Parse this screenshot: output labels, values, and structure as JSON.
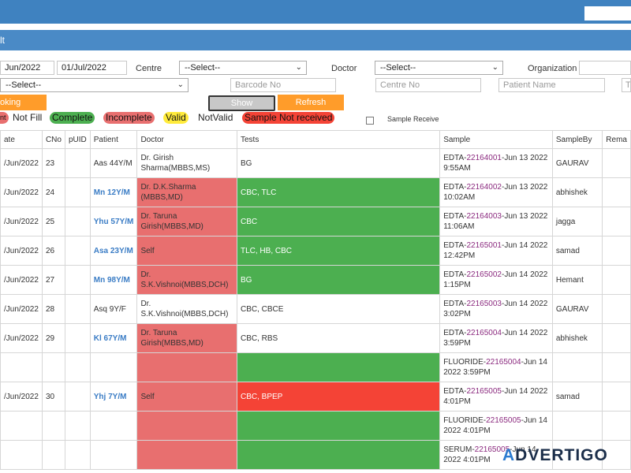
{
  "header": {
    "title": "lt"
  },
  "filters": {
    "from_date": "Jun/2022",
    "to_date": "01/Jul/2022",
    "centre_label": "Centre",
    "centre_value": "--Select--",
    "doctor_label": "Doctor",
    "doctor_value": "--Select--",
    "organization_label": "Organization",
    "second_select_value": "--Select--",
    "barcode_placeholder": "Barcode No",
    "centre_no_placeholder": "Centre No",
    "patient_name_placeholder": "Patient Name",
    "last_placeholder": "T"
  },
  "buttons": {
    "booking": "oking",
    "show": "Show",
    "refresh": "Refresh"
  },
  "legend": {
    "first": "nt",
    "not_fill": "Not Fill",
    "complete": "Complete",
    "incomplete": "Incomplete",
    "valid": "Valid",
    "not_valid": "NotValid",
    "not_received": "Sample Not received",
    "sample_receive": "Sample Receive"
  },
  "table": {
    "columns": [
      "ate",
      "CNo",
      "pUID",
      "Patient",
      "Doctor",
      "Tests",
      "Sample",
      "SampleBy",
      "Rema"
    ],
    "rows": [
      {
        "date": "/Jun/2022",
        "cno": "23",
        "puid": "",
        "patient": "Aas 44Y/M",
        "patient_link": false,
        "doctor": "Dr. Girish Sharma(MBBS,MS)",
        "doctor_style": "",
        "tests": "BG",
        "tests_style": "",
        "sample_pre": "EDTA-",
        "sample_id": "22164001",
        "sample_post": "-Jun 13 2022 9:55AM",
        "sampleby": "GAURAV"
      },
      {
        "date": "/Jun/2022",
        "cno": "24",
        "puid": "",
        "patient": "Mn 12Y/M",
        "patient_link": true,
        "doctor": "Dr. D.K.Sharma (MBBS,MD)",
        "doctor_style": "red",
        "tests": "CBC, TLC",
        "tests_style": "green",
        "sample_pre": "EDTA-",
        "sample_id": "22164002",
        "sample_post": "-Jun 13 2022 10:02AM",
        "sampleby": "abhishek"
      },
      {
        "date": "/Jun/2022",
        "cno": "25",
        "puid": "",
        "patient": "Yhu 57Y/M",
        "patient_link": true,
        "doctor": "Dr. Taruna Girish(MBBS,MD)",
        "doctor_style": "red",
        "tests": "CBC",
        "tests_style": "green",
        "sample_pre": "EDTA-",
        "sample_id": "22164003",
        "sample_post": "-Jun 13 2022 11:06AM",
        "sampleby": "jagga"
      },
      {
        "date": "/Jun/2022",
        "cno": "26",
        "puid": "",
        "patient": "Asa 23Y/M",
        "patient_link": true,
        "doctor": "Self",
        "doctor_style": "red",
        "tests": "TLC, HB, CBC",
        "tests_style": "green",
        "sample_pre": "EDTA-",
        "sample_id": "22165001",
        "sample_post": "-Jun 14 2022 12:42PM",
        "sampleby": "samad"
      },
      {
        "date": "/Jun/2022",
        "cno": "27",
        "puid": "",
        "patient": "Mn 98Y/M",
        "patient_link": true,
        "doctor": "Dr. S.K.Vishnoi(MBBS,DCH)",
        "doctor_style": "red",
        "tests": "BG",
        "tests_style": "green",
        "sample_pre": "EDTA-",
        "sample_id": "22165002",
        "sample_post": "-Jun 14 2022 1:15PM",
        "sampleby": "Hemant"
      },
      {
        "date": "/Jun/2022",
        "cno": "28",
        "puid": "",
        "patient": "Asq 9Y/F",
        "patient_link": false,
        "doctor": "Dr. S.K.Vishnoi(MBBS,DCH)",
        "doctor_style": "",
        "tests": "CBC, CBCE",
        "tests_style": "",
        "sample_pre": "EDTA-",
        "sample_id": "22165003",
        "sample_post": "-Jun 14 2022 3:02PM",
        "sampleby": "GAURAV"
      },
      {
        "date": "/Jun/2022",
        "cno": "29",
        "puid": "",
        "patient": "Kl 67Y/M",
        "patient_link": true,
        "doctor": "Dr. Taruna Girish(MBBS,MD)",
        "doctor_style": "red",
        "tests": "CBC, RBS",
        "tests_style": "",
        "sample_pre": "EDTA-",
        "sample_id": "22165004",
        "sample_post": "-Jun 14 2022 3:59PM",
        "sampleby": "abhishek"
      },
      {
        "date": "",
        "cno": "",
        "puid": "",
        "patient": "",
        "patient_link": false,
        "doctor": "",
        "doctor_style": "red",
        "tests": "",
        "tests_style": "green",
        "sample_pre": "FLUORIDE-",
        "sample_id": "22165004",
        "sample_post": "-Jun 14 2022 3:59PM",
        "sampleby": ""
      },
      {
        "date": "/Jun/2022",
        "cno": "30",
        "puid": "",
        "patient": "Yhj 7Y/M",
        "patient_link": true,
        "doctor": "Self",
        "doctor_style": "red",
        "tests": "CBC, BPEP",
        "tests_style": "brightred",
        "sample_pre": "EDTA-",
        "sample_id": "22165005",
        "sample_post": "-Jun 14 2022 4:01PM",
        "sampleby": "samad"
      },
      {
        "date": "",
        "cno": "",
        "puid": "",
        "patient": "",
        "patient_link": false,
        "doctor": "",
        "doctor_style": "red",
        "tests": "",
        "tests_style": "green",
        "sample_pre": "FLUORIDE-",
        "sample_id": "22165005",
        "sample_post": "-Jun 14 2022 4:01PM",
        "sampleby": ""
      },
      {
        "date": "",
        "cno": "",
        "puid": "",
        "patient": "",
        "patient_link": false,
        "doctor": "",
        "doctor_style": "red",
        "tests": "",
        "tests_style": "green",
        "sample_pre": "SERUM-",
        "sample_id": "22165005",
        "sample_post": "-Jun 14 2022 4:01PM",
        "sampleby": ""
      }
    ]
  },
  "watermark": {
    "prefix": "A",
    "rest": "DVERTIGO"
  },
  "colors": {
    "header": "#3f82c0",
    "orange": "#ff9c2a",
    "complete": "#4caf50",
    "incomplete": "#e86f6f",
    "not_received": "#f44336",
    "valid": "#ffeb3b"
  }
}
